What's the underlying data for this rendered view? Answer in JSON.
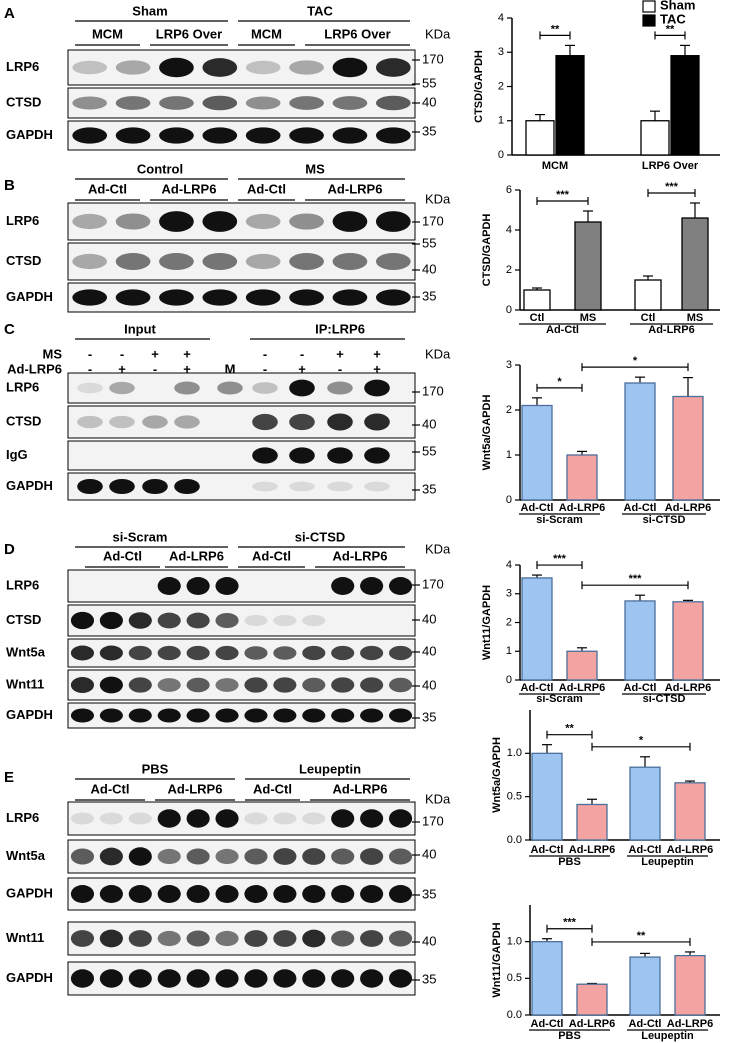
{
  "blots": [
    {
      "letter": "A",
      "headers": [
        "Sham",
        "TAC"
      ],
      "subheaders": [
        "MCM",
        "LRP6 Over",
        "MCM",
        "LRP6 Over"
      ],
      "unit": "KDa",
      "rows": [
        "LRP6",
        "CTSD",
        "GAPDH"
      ],
      "markers": [
        "170",
        "55",
        "40",
        "35"
      ]
    },
    {
      "letter": "B",
      "headers": [
        "Control",
        "MS"
      ],
      "subheaders": [
        "Ad-Ctl",
        "Ad-LRP6",
        "Ad-Ctl",
        "Ad-LRP6"
      ],
      "unit": "KDa",
      "rows": [
        "LRP6",
        "CTSD",
        "GAPDH"
      ],
      "markers": [
        "170",
        "55",
        "40",
        "35"
      ]
    },
    {
      "letter": "C",
      "headers": [
        "Input",
        "IP:LRP6"
      ],
      "conditions": [
        {
          "name": "MS",
          "signs": [
            "-",
            "-",
            "+",
            "+",
            "-",
            "-",
            "+",
            "+"
          ]
        },
        {
          "name": "Ad-LRP6",
          "signs": [
            "-",
            "+",
            "-",
            "+",
            "-",
            "+",
            "-",
            "+"
          ]
        }
      ],
      "lane_label": "M",
      "unit": "KDa",
      "rows": [
        "LRP6",
        "CTSD",
        "IgG",
        "GAPDH"
      ],
      "markers": [
        "170",
        "40",
        "55",
        "35"
      ]
    },
    {
      "letter": "D",
      "headers": [
        "si-Scram",
        "si-CTSD"
      ],
      "subheaders": [
        "Ad-Ctl",
        "Ad-LRP6",
        "Ad-Ctl",
        "Ad-LRP6"
      ],
      "unit": "KDa",
      "rows": [
        "LRP6",
        "CTSD",
        "Wnt5a",
        "Wnt11",
        "GAPDH"
      ],
      "markers": [
        "170",
        "40",
        "40",
        "40",
        "35"
      ]
    },
    {
      "letter": "E",
      "headers": [
        "PBS",
        "Leupeptin"
      ],
      "subheaders": [
        "Ad-Ctl",
        "Ad-LRP6",
        "Ad-Ctl",
        "Ad-LRP6"
      ],
      "unit": "KDa",
      "rows": [
        "LRP6",
        "Wnt5a",
        "GAPDH",
        "Wnt11",
        "GAPDH"
      ],
      "markers": [
        "170",
        "40",
        "35",
        "40",
        "35"
      ]
    }
  ],
  "chart_data": [
    {
      "type": "bar",
      "ylabel": "CTSD/GAPDH",
      "categories": [
        "MCM",
        "LRP6 Over"
      ],
      "series": [
        {
          "name": "Sham",
          "color": "#ffffff",
          "values": [
            1.0,
            1.0
          ],
          "errors": [
            0.18,
            0.28
          ]
        },
        {
          "name": "TAC",
          "color": "#000000",
          "values": [
            2.9,
            2.9
          ],
          "errors": [
            0.3,
            0.3
          ]
        }
      ],
      "ylim": [
        0,
        4
      ],
      "yticks": [
        0,
        1,
        2,
        3,
        4
      ],
      "annotations": [
        "**",
        "**"
      ],
      "legend": "top-right"
    },
    {
      "type": "bar",
      "ylabel": "CTSD/GAPDH",
      "categories": [
        "Ctl",
        "MS",
        "Ctl",
        "MS"
      ],
      "groups": [
        "Ad-Ctl",
        "Ad-LRP6"
      ],
      "values": [
        1.0,
        4.4,
        1.5,
        4.6
      ],
      "errors": [
        0.1,
        0.55,
        0.2,
        0.75
      ],
      "colors": [
        "#ffffff",
        "#808080",
        "#ffffff",
        "#808080"
      ],
      "ylim": [
        0,
        6
      ],
      "yticks": [
        0,
        2,
        4,
        6
      ],
      "annotations": [
        "***",
        "***"
      ]
    },
    {
      "type": "bar",
      "ylabel": "Wnt5a/GAPDH",
      "categories": [
        "Ad-Ctl",
        "Ad-LRP6",
        "Ad-Ctl",
        "Ad-LRP6"
      ],
      "groups": [
        "si-Scram",
        "si-CTSD"
      ],
      "values": [
        2.1,
        1.0,
        2.6,
        2.3
      ],
      "errors": [
        0.17,
        0.08,
        0.13,
        0.42
      ],
      "colors": [
        "#9ec5f2",
        "#f4a3a3",
        "#9ec5f2",
        "#f4a3a3"
      ],
      "ylim": [
        0,
        3
      ],
      "yticks": [
        0,
        1,
        2,
        3
      ],
      "annotations": [
        "*",
        "*"
      ]
    },
    {
      "type": "bar",
      "ylabel": "Wnt11/GAPDH",
      "categories": [
        "Ad-Ctl",
        "Ad-LRP6",
        "Ad-Ctl",
        "Ad-LRP6"
      ],
      "groups": [
        "si-Scram",
        "si-CTSD"
      ],
      "values": [
        3.55,
        1.0,
        2.75,
        2.72
      ],
      "errors": [
        0.1,
        0.12,
        0.2,
        0.05
      ],
      "colors": [
        "#9ec5f2",
        "#f4a3a3",
        "#9ec5f2",
        "#f4a3a3"
      ],
      "ylim": [
        0,
        4
      ],
      "yticks": [
        0,
        1,
        2,
        3,
        4
      ],
      "annotations": [
        "***",
        "***"
      ]
    },
    {
      "type": "bar",
      "ylabel": "Wnt5a/GAPDH",
      "categories": [
        "Ad-Ctl",
        "Ad-LRP6",
        "Ad-Ctl",
        "Ad-LRP6"
      ],
      "groups": [
        "PBS",
        "Leupeptin"
      ],
      "values": [
        1.0,
        0.41,
        0.84,
        0.66
      ],
      "errors": [
        0.1,
        0.06,
        0.12,
        0.02
      ],
      "colors": [
        "#9ec5f2",
        "#f4a3a3",
        "#9ec5f2",
        "#f4a3a3"
      ],
      "ylim": [
        0,
        1.5
      ],
      "yticks": [
        {
          "value": 0,
          "label": "0.0"
        },
        {
          "value": 0.5,
          "label": "0.5"
        },
        {
          "value": 1,
          "label": "1.0"
        }
      ],
      "annotations": [
        "**",
        "*"
      ]
    },
    {
      "type": "bar",
      "ylabel": "Wnt11/GAPDH",
      "categories": [
        "Ad-Ctl",
        "Ad-LRP6",
        "Ad-Ctl",
        "Ad-LRP6"
      ],
      "groups": [
        "PBS",
        "Leupeptin"
      ],
      "values": [
        1.0,
        0.42,
        0.79,
        0.81
      ],
      "errors": [
        0.04,
        0.01,
        0.05,
        0.05
      ],
      "colors": [
        "#9ec5f2",
        "#f4a3a3",
        "#9ec5f2",
        "#f4a3a3"
      ],
      "ylim": [
        0,
        1.5
      ],
      "yticks": [
        {
          "value": 0,
          "label": "0.0"
        },
        {
          "value": 0.5,
          "label": "0.5"
        },
        {
          "value": 1,
          "label": "1.0"
        }
      ],
      "annotations": [
        "***",
        "**"
      ]
    }
  ]
}
